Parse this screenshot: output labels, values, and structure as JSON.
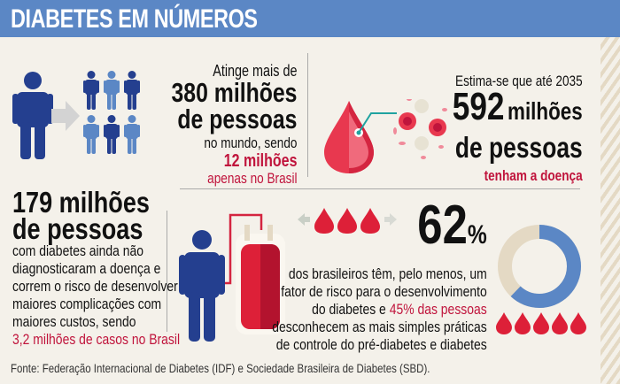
{
  "header": {
    "title": "DIABETES EM NÚMEROS"
  },
  "colors": {
    "header_blue": "#5b87c5",
    "dark_blue": "#243f8f",
    "red": "#c0143c",
    "background": "#f4f1ea"
  },
  "stat_world": {
    "intro": "Atinge mais de",
    "number_line1": "380 milhões",
    "number_line2": "de pessoas",
    "middle": "no mundo, sendo",
    "highlight_line1": "12 milhões",
    "highlight_line2": "apenas no Brasil"
  },
  "stat_2035": {
    "intro": "Estima-se que até 2035",
    "number": "592",
    "number_unit": "milhões",
    "number_line2": "de pessoas",
    "highlight": "tenham a doença"
  },
  "stat_undiagnosed": {
    "number_line1": "179 milhões",
    "number_line2": "de pessoas",
    "body_lines": [
      "com diabetes ainda não",
      "diagnosticaram a doença e",
      "correm o risco de desenvolver",
      "maiores complicações com",
      "maiores custos, sendo"
    ],
    "highlight": "3,2 milhões de casos no Brasil"
  },
  "stat_risk": {
    "number": "62",
    "percent_sign": "%",
    "line1": "dos brasileiros têm, pelo menos, um",
    "line2": "fator de risco para o desenvolvimento",
    "line3_prefix": "do diabetes e ",
    "line3_highlight": "45% das pessoas",
    "line4": "desconhecem as mais simples práticas",
    "line5": "de controle do pré-diabetes e diabetes",
    "donut_percent": 62
  },
  "footer": {
    "source": "Fonte: Federação Internacional de Diabetes (IDF) e Sociedade Brasileira de Diabetes (SBD)."
  }
}
